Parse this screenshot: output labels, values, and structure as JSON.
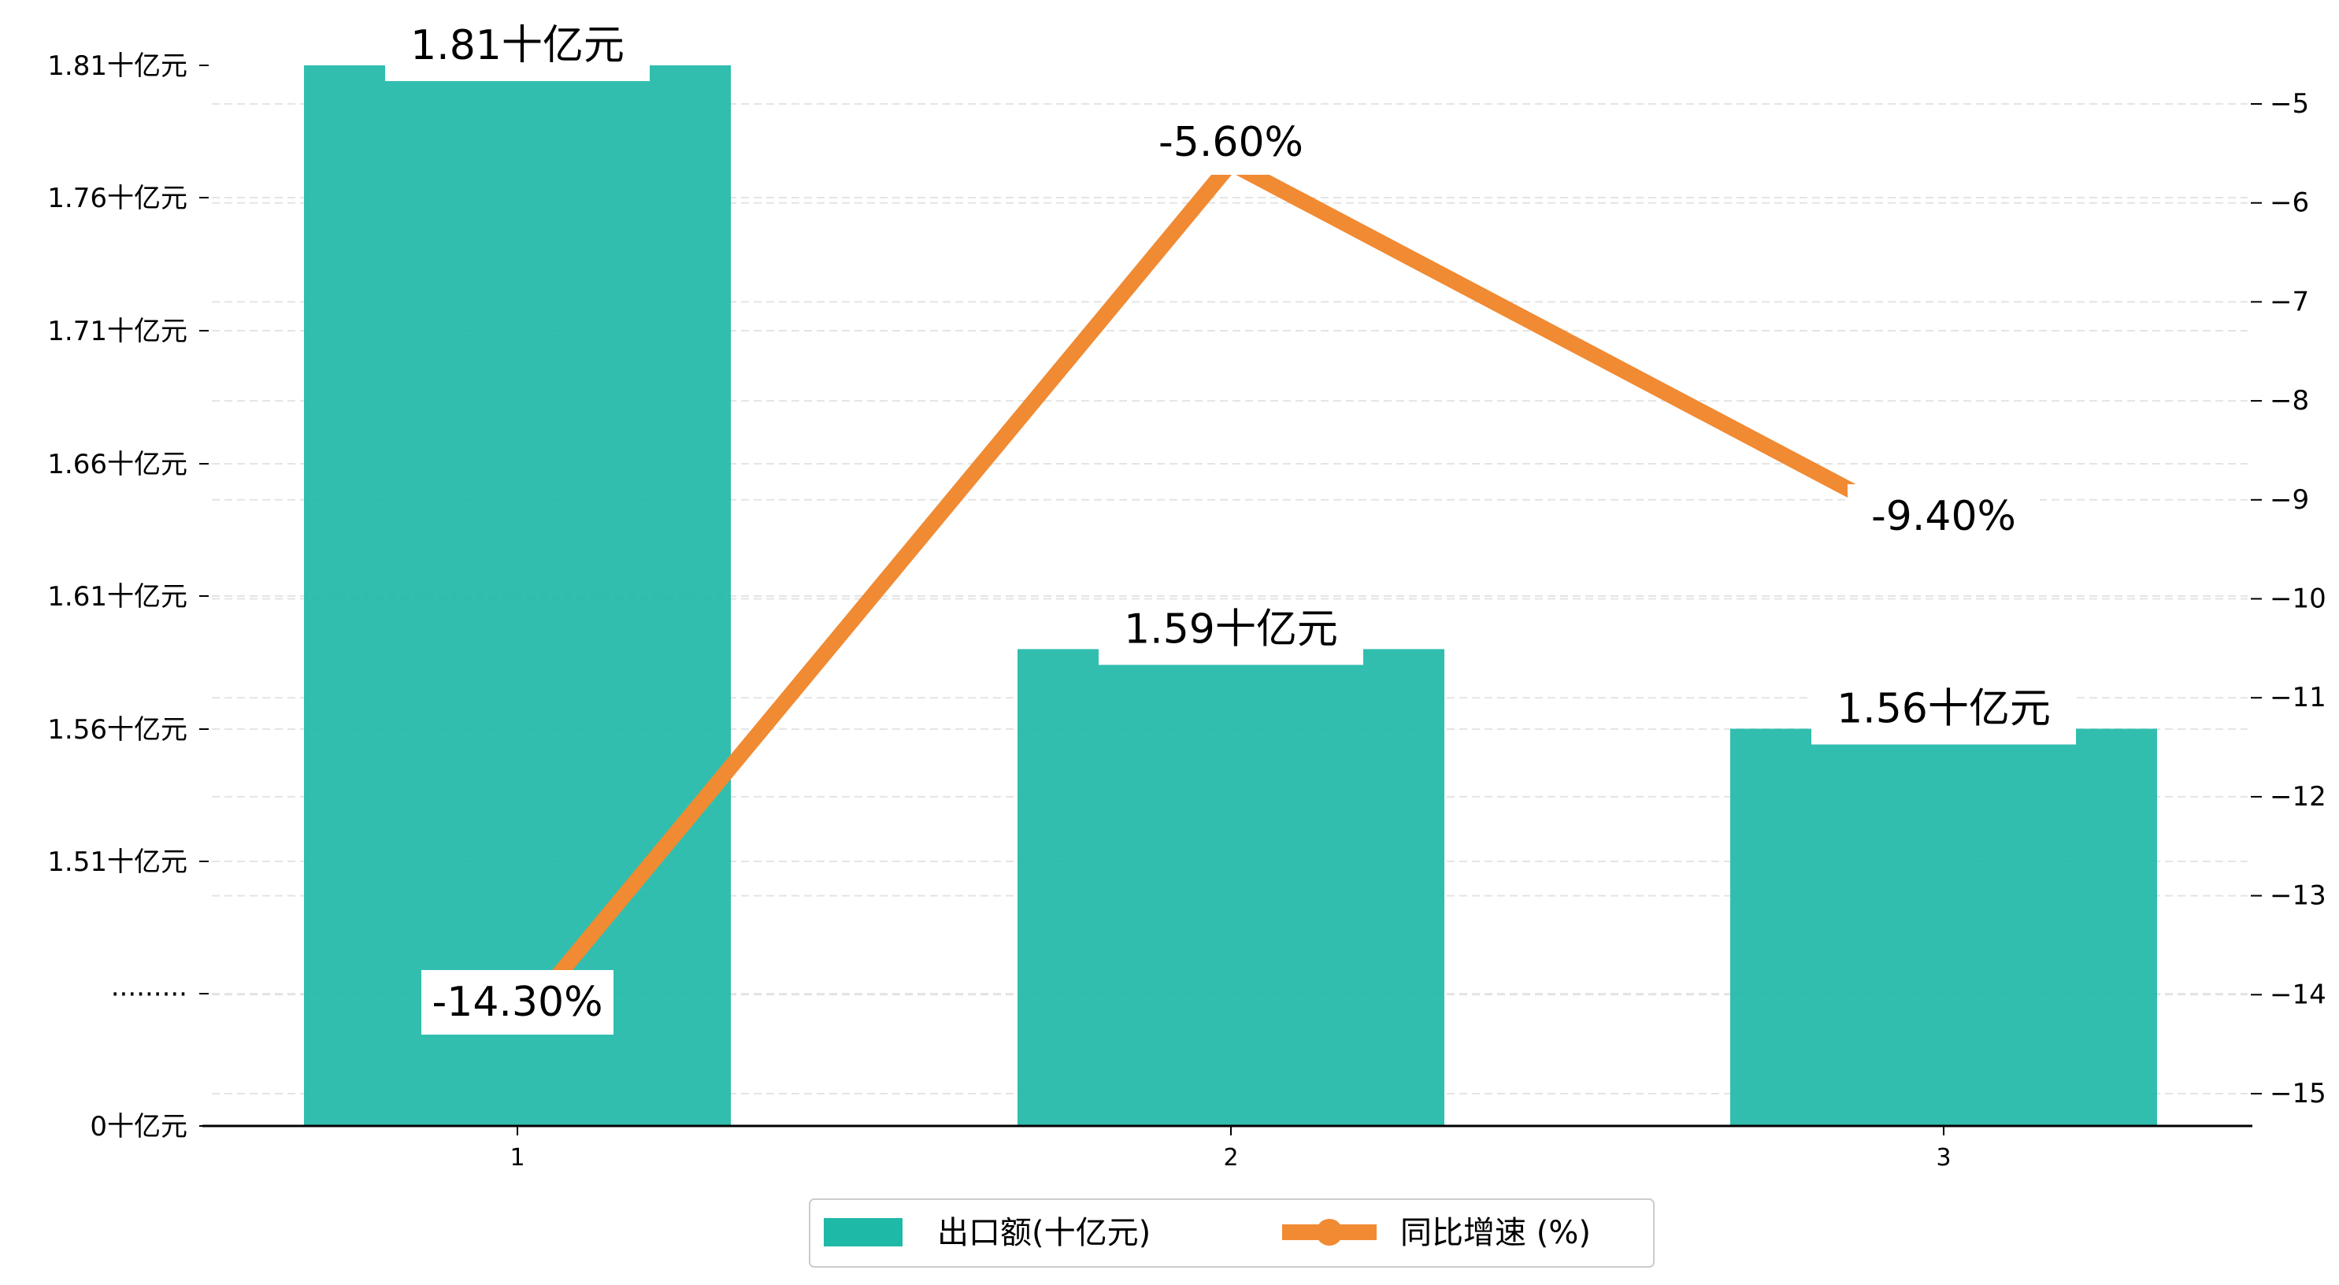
{
  "chart_data": {
    "type": "bar",
    "categories": [
      "1",
      "2",
      "3"
    ],
    "series": [
      {
        "name": "出口额(十亿元)",
        "kind": "bar",
        "axis": "left",
        "values": [
          1.81,
          1.59,
          1.56
        ],
        "labels": [
          "1.81十亿元",
          "1.59十亿元",
          "1.56十亿元"
        ],
        "color": "#1fb9a8"
      },
      {
        "name": "同比增速 (%)",
        "kind": "line",
        "axis": "right",
        "values": [
          -14.3,
          -5.6,
          -9.4
        ],
        "labels": [
          "-14.30%",
          "-5.60%",
          "-9.40%"
        ],
        "color": "#f08a33"
      }
    ],
    "left_axis": {
      "tick_labels": [
        "0十亿元",
        "·········",
        "1.51十亿元",
        "1.56十亿元",
        "1.61十亿元",
        "1.66十亿元",
        "1.71十亿元",
        "1.76十亿元",
        "1.81十亿元"
      ],
      "broken": true
    },
    "right_axis": {
      "ylim": [
        -15.3,
        -4.5
      ],
      "ticks": [
        -5,
        -6,
        -7,
        -8,
        -9,
        -10,
        -11,
        -12,
        -13,
        -14,
        -15
      ]
    },
    "grid": true,
    "legend_position": "bottom-center"
  }
}
